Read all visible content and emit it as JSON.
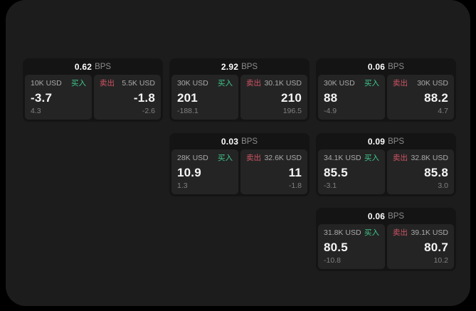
{
  "panel": {
    "bps_unit": "BPS",
    "buy_label": "买入",
    "sell_label": "卖出",
    "cards": [
      {
        "bps": "0.62",
        "col": 1,
        "row": 1,
        "buy": {
          "amount": "10K USD",
          "price": "-3.7",
          "delta": "4.3"
        },
        "sell": {
          "amount": "5.5K USD",
          "price": "-1.8",
          "delta": "-2.6"
        }
      },
      {
        "bps": "2.92",
        "col": 2,
        "row": 1,
        "buy": {
          "amount": "30K USD",
          "price": "201",
          "delta": "-188.1"
        },
        "sell": {
          "amount": "30.1K USD",
          "price": "210",
          "delta": "196.5"
        }
      },
      {
        "bps": "0.06",
        "col": 3,
        "row": 1,
        "buy": {
          "amount": "30K USD",
          "price": "88",
          "delta": "-4.9"
        },
        "sell": {
          "amount": "30K USD",
          "price": "88.2",
          "delta": "4.7"
        }
      },
      {
        "bps": "0.03",
        "col": 2,
        "row": 2,
        "buy": {
          "amount": "28K USD",
          "price": "10.9",
          "delta": "1.3"
        },
        "sell": {
          "amount": "32.6K USD",
          "price": "11",
          "delta": "-1.8"
        }
      },
      {
        "bps": "0.09",
        "col": 3,
        "row": 2,
        "buy": {
          "amount": "34.1K USD",
          "price": "85.5",
          "delta": "-3.1"
        },
        "sell": {
          "amount": "32.8K USD",
          "price": "85.8",
          "delta": "3.0"
        }
      },
      {
        "bps": "0.06",
        "col": 3,
        "row": 3,
        "buy": {
          "amount": "31.8K USD",
          "price": "80.5",
          "delta": "-10.8"
        },
        "sell": {
          "amount": "39.1K USD",
          "price": "80.7",
          "delta": "10.2"
        }
      }
    ]
  },
  "colors": {
    "page_bg": "#000000",
    "panel_bg": "#1c1c1c",
    "card_bg": "#141414",
    "pane_bg": "#242424",
    "buy": "#3ec88c",
    "sell": "#d15464",
    "price_text": "#f5f5f5",
    "muted_text": "#8c8c8c"
  }
}
